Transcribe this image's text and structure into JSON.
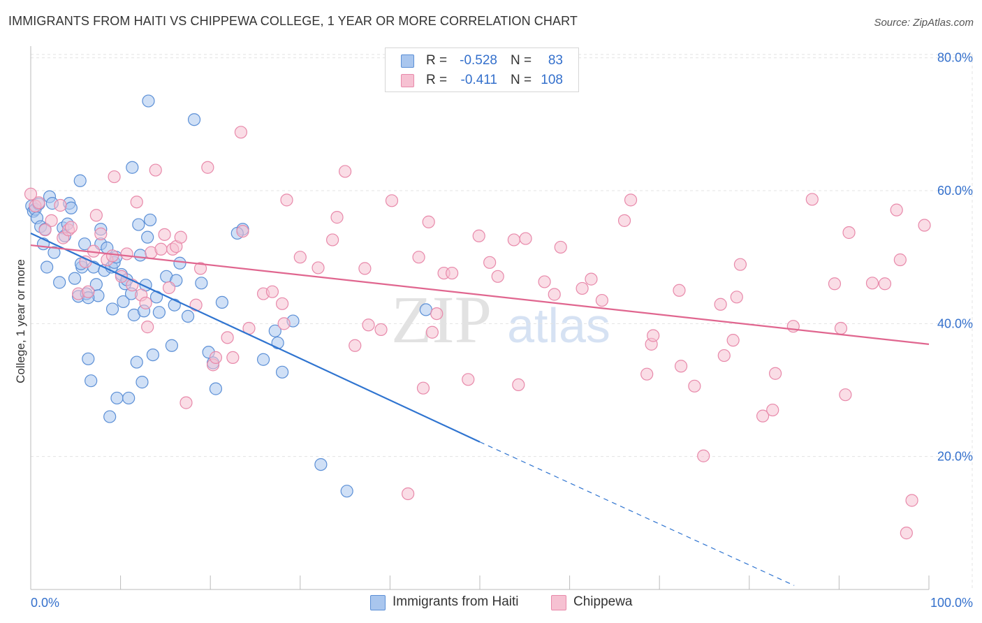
{
  "title": "IMMIGRANTS FROM HAITI VS CHIPPEWA COLLEGE, 1 YEAR OR MORE CORRELATION CHART",
  "source": "Source: ZipAtlas.com",
  "watermark": {
    "zip": "ZIP",
    "atlas": "atlas"
  },
  "colors": {
    "blue_fill": "#a9c6ee",
    "blue_stroke": "#5b8fd6",
    "blue_line": "#2f74d0",
    "pink_fill": "#f6c1d2",
    "pink_stroke": "#e889aa",
    "pink_line": "#e0668f",
    "axis_text": "#3470cc",
    "grid": "#e3e3e3"
  },
  "stats": [
    {
      "r_label": "R =",
      "r_value": "-0.528",
      "n_label": "N =",
      "n_value": "83",
      "color": "#a9c6ee",
      "border": "#5b8fd6"
    },
    {
      "r_label": "R =",
      "r_value": "-0.411",
      "n_label": "N =",
      "n_value": "108",
      "color": "#f6c1d2",
      "border": "#e889aa"
    }
  ],
  "legend": [
    {
      "label": "Immigrants from Haiti",
      "color": "#a9c6ee",
      "border": "#5b8fd6"
    },
    {
      "label": "Chippewa",
      "color": "#f6c1d2",
      "border": "#e889aa"
    }
  ],
  "chart_data": {
    "type": "scatter",
    "title": "IMMIGRANTS FROM HAITI VS CHIPPEWA COLLEGE, 1 YEAR OR MORE CORRELATION CHART",
    "xlabel": "",
    "ylabel": "College, 1 year or more",
    "xlim": [
      0,
      100
    ],
    "ylim": [
      0,
      80
    ],
    "x_tick_labels": [
      "0.0%",
      "100.0%"
    ],
    "y_ticks": [
      20,
      40,
      60,
      80
    ],
    "y_tick_labels": [
      "20.0%",
      "40.0%",
      "60.0%",
      "80.0%"
    ],
    "grid": true,
    "series": [
      {
        "name": "Immigrants from Haiti",
        "trend": {
          "x": [
            0,
            50
          ],
          "y": [
            53.6,
            22.2
          ],
          "dashed_to": [
            85,
            0.6
          ]
        },
        "points": [
          [
            0.1,
            57.7
          ],
          [
            0.3,
            56.9
          ],
          [
            0.5,
            57.2
          ],
          [
            0.7,
            55.9
          ],
          [
            0.9,
            58.0
          ],
          [
            1.1,
            54.6
          ],
          [
            1.4,
            52.0
          ],
          [
            1.6,
            54.2
          ],
          [
            1.8,
            48.5
          ],
          [
            2.1,
            59.1
          ],
          [
            2.4,
            58.1
          ],
          [
            2.6,
            50.7
          ],
          [
            3.2,
            46.2
          ],
          [
            3.6,
            54.4
          ],
          [
            3.8,
            53.2
          ],
          [
            4.1,
            55.0
          ],
          [
            4.3,
            58.1
          ],
          [
            4.5,
            57.4
          ],
          [
            4.9,
            46.8
          ],
          [
            5.3,
            44.1
          ],
          [
            5.5,
            61.5
          ],
          [
            5.7,
            48.5
          ],
          [
            6.0,
            52.0
          ],
          [
            6.2,
            44.5
          ],
          [
            6.4,
            34.7
          ],
          [
            6.7,
            31.4
          ],
          [
            7.0,
            48.5
          ],
          [
            7.3,
            45.9
          ],
          [
            7.5,
            44.2
          ],
          [
            7.8,
            52.0
          ],
          [
            7.8,
            54.2
          ],
          [
            8.2,
            48.0
          ],
          [
            8.5,
            51.4
          ],
          [
            8.8,
            26.0
          ],
          [
            9.0,
            48.5
          ],
          [
            9.3,
            49.2
          ],
          [
            9.5,
            50.0
          ],
          [
            9.6,
            28.8
          ],
          [
            10.1,
            47.4
          ],
          [
            10.3,
            43.3
          ],
          [
            10.5,
            46.0
          ],
          [
            10.7,
            46.6
          ],
          [
            10.9,
            28.8
          ],
          [
            11.2,
            44.5
          ],
          [
            11.3,
            63.5
          ],
          [
            11.5,
            41.3
          ],
          [
            11.8,
            34.2
          ],
          [
            12.0,
            54.9
          ],
          [
            12.2,
            50.3
          ],
          [
            12.4,
            31.2
          ],
          [
            12.6,
            41.9
          ],
          [
            12.8,
            45.8
          ],
          [
            13.0,
            53.0
          ],
          [
            13.3,
            55.6
          ],
          [
            13.6,
            35.3
          ],
          [
            14.0,
            44.0
          ],
          [
            14.3,
            41.7
          ],
          [
            15.1,
            47.1
          ],
          [
            15.7,
            36.7
          ],
          [
            16.2,
            46.5
          ],
          [
            16.6,
            49.1
          ],
          [
            17.5,
            41.1
          ],
          [
            18.2,
            70.7
          ],
          [
            19.0,
            46.1
          ],
          [
            19.8,
            35.7
          ],
          [
            20.3,
            34.1
          ],
          [
            20.6,
            30.2
          ],
          [
            21.3,
            43.2
          ],
          [
            23.6,
            54.2
          ],
          [
            25.9,
            34.6
          ],
          [
            27.2,
            38.9
          ],
          [
            27.5,
            37.1
          ],
          [
            28.0,
            32.7
          ],
          [
            29.2,
            40.4
          ],
          [
            44.0,
            42.1
          ],
          [
            16.0,
            42.8
          ],
          [
            23.0,
            53.6
          ],
          [
            32.3,
            18.8
          ],
          [
            35.2,
            14.8
          ],
          [
            13.1,
            73.5
          ],
          [
            9.1,
            42.2
          ],
          [
            6.4,
            43.9
          ],
          [
            5.6,
            49.0
          ]
        ]
      },
      {
        "name": "Chippewa",
        "trend": {
          "x": [
            0,
            100
          ],
          "y": [
            51.8,
            36.9
          ]
        },
        "points": [
          [
            0.0,
            59.5
          ],
          [
            0.5,
            57.7
          ],
          [
            0.9,
            58.2
          ],
          [
            1.6,
            54.1
          ],
          [
            2.3,
            55.5
          ],
          [
            3.3,
            57.8
          ],
          [
            3.6,
            52.9
          ],
          [
            4.2,
            54.1
          ],
          [
            4.5,
            54.5
          ],
          [
            5.3,
            44.5
          ],
          [
            6.1,
            49.3
          ],
          [
            6.4,
            44.8
          ],
          [
            7.0,
            50.9
          ],
          [
            7.3,
            56.3
          ],
          [
            7.8,
            53.5
          ],
          [
            8.5,
            49.6
          ],
          [
            9.1,
            50.2
          ],
          [
            9.3,
            62.1
          ],
          [
            10.1,
            47.1
          ],
          [
            10.7,
            50.5
          ],
          [
            11.3,
            45.8
          ],
          [
            11.8,
            58.3
          ],
          [
            12.3,
            44.3
          ],
          [
            12.8,
            43.1
          ],
          [
            13.0,
            39.5
          ],
          [
            13.4,
            50.7
          ],
          [
            13.9,
            63.1
          ],
          [
            14.5,
            51.2
          ],
          [
            14.9,
            53.4
          ],
          [
            15.4,
            45.4
          ],
          [
            15.8,
            51.2
          ],
          [
            16.2,
            51.6
          ],
          [
            16.7,
            53.0
          ],
          [
            17.3,
            28.1
          ],
          [
            18.4,
            42.8
          ],
          [
            18.9,
            48.3
          ],
          [
            19.7,
            63.5
          ],
          [
            20.3,
            33.8
          ],
          [
            20.6,
            34.9
          ],
          [
            21.9,
            37.9
          ],
          [
            22.5,
            34.9
          ],
          [
            23.4,
            68.8
          ],
          [
            23.6,
            53.9
          ],
          [
            24.3,
            39.3
          ],
          [
            25.9,
            44.5
          ],
          [
            26.9,
            44.8
          ],
          [
            28.0,
            43.0
          ],
          [
            28.2,
            40.0
          ],
          [
            28.5,
            58.6
          ],
          [
            30.0,
            50.0
          ],
          [
            32.0,
            48.4
          ],
          [
            33.6,
            52.6
          ],
          [
            34.1,
            56.0
          ],
          [
            35.0,
            62.9
          ],
          [
            36.1,
            36.7
          ],
          [
            37.2,
            48.3
          ],
          [
            37.6,
            39.8
          ],
          [
            39.0,
            39.1
          ],
          [
            40.2,
            58.5
          ],
          [
            42.0,
            14.4
          ],
          [
            43.2,
            50.0
          ],
          [
            43.7,
            30.3
          ],
          [
            44.3,
            55.3
          ],
          [
            44.7,
            38.7
          ],
          [
            45.2,
            41.5
          ],
          [
            46.0,
            47.6
          ],
          [
            46.9,
            47.6
          ],
          [
            48.7,
            31.6
          ],
          [
            49.9,
            53.2
          ],
          [
            51.1,
            49.2
          ],
          [
            52.0,
            47.1
          ],
          [
            53.8,
            52.6
          ],
          [
            54.3,
            30.8
          ],
          [
            55.1,
            52.8
          ],
          [
            57.2,
            46.3
          ],
          [
            58.3,
            44.4
          ],
          [
            59.0,
            51.5
          ],
          [
            61.4,
            45.3
          ],
          [
            62.4,
            46.7
          ],
          [
            63.6,
            43.5
          ],
          [
            66.1,
            55.5
          ],
          [
            66.8,
            58.6
          ],
          [
            68.6,
            32.4
          ],
          [
            69.1,
            36.9
          ],
          [
            69.3,
            38.2
          ],
          [
            72.2,
            45.0
          ],
          [
            72.4,
            33.6
          ],
          [
            73.9,
            30.6
          ],
          [
            74.9,
            20.1
          ],
          [
            76.8,
            42.9
          ],
          [
            77.2,
            35.2
          ],
          [
            78.2,
            37.5
          ],
          [
            78.6,
            44.0
          ],
          [
            79.0,
            48.9
          ],
          [
            81.5,
            26.1
          ],
          [
            82.6,
            27.0
          ],
          [
            82.9,
            32.5
          ],
          [
            84.9,
            39.6
          ],
          [
            87.0,
            58.7
          ],
          [
            89.5,
            46.0
          ],
          [
            90.2,
            39.3
          ],
          [
            90.7,
            29.3
          ],
          [
            91.1,
            53.7
          ],
          [
            93.7,
            46.1
          ],
          [
            95.1,
            46.0
          ],
          [
            96.4,
            57.1
          ],
          [
            96.8,
            49.6
          ],
          [
            97.5,
            8.5
          ],
          [
            98.1,
            13.4
          ],
          [
            99.5,
            54.8
          ]
        ]
      }
    ]
  }
}
